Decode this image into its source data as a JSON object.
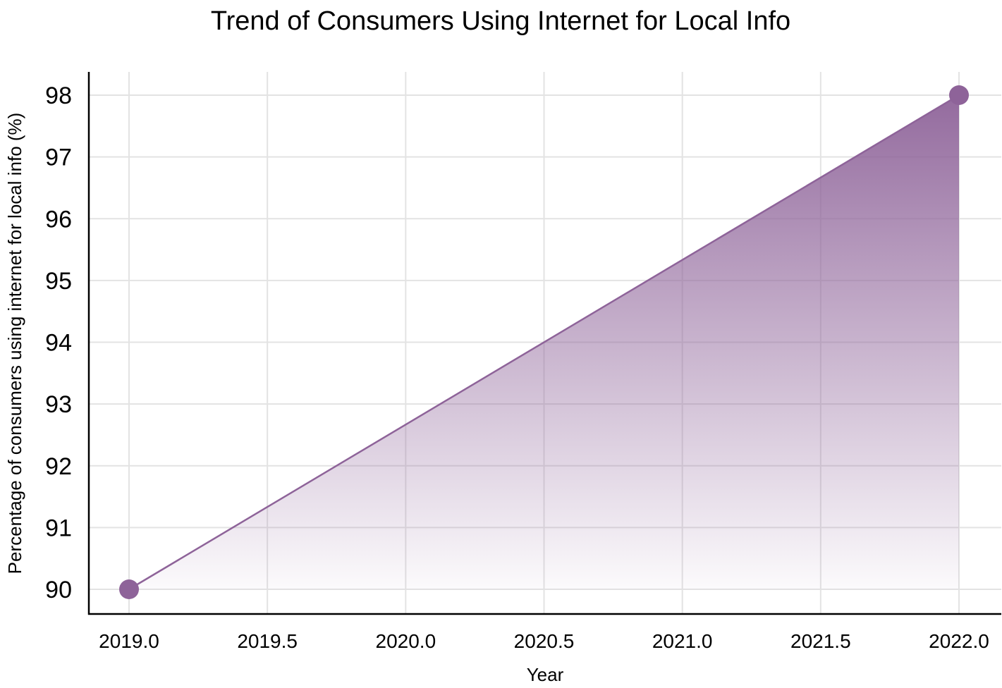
{
  "chart_data": {
    "type": "area",
    "title": "Trend of Consumers Using Internet for Local Info",
    "xlabel": "Year",
    "ylabel": "Percentage of consumers using internet for local info (%)",
    "x": [
      2019,
      2022
    ],
    "series": [
      {
        "values": [
          90,
          98
        ]
      }
    ],
    "xlim": [
      2018.855,
      2022.15
    ],
    "ylim": [
      89.6,
      98.4
    ],
    "xticks": [
      "2019.0",
      "2019.5",
      "2020.0",
      "2020.5",
      "2021.0",
      "2021.5",
      "2022.0"
    ],
    "yticks": [
      "90",
      "91",
      "92",
      "93",
      "94",
      "95",
      "96",
      "97",
      "98"
    ],
    "grid": true,
    "colors": {
      "line": "#8e6399",
      "fill": "#8e6399",
      "grid": "#e3e3e3"
    }
  }
}
